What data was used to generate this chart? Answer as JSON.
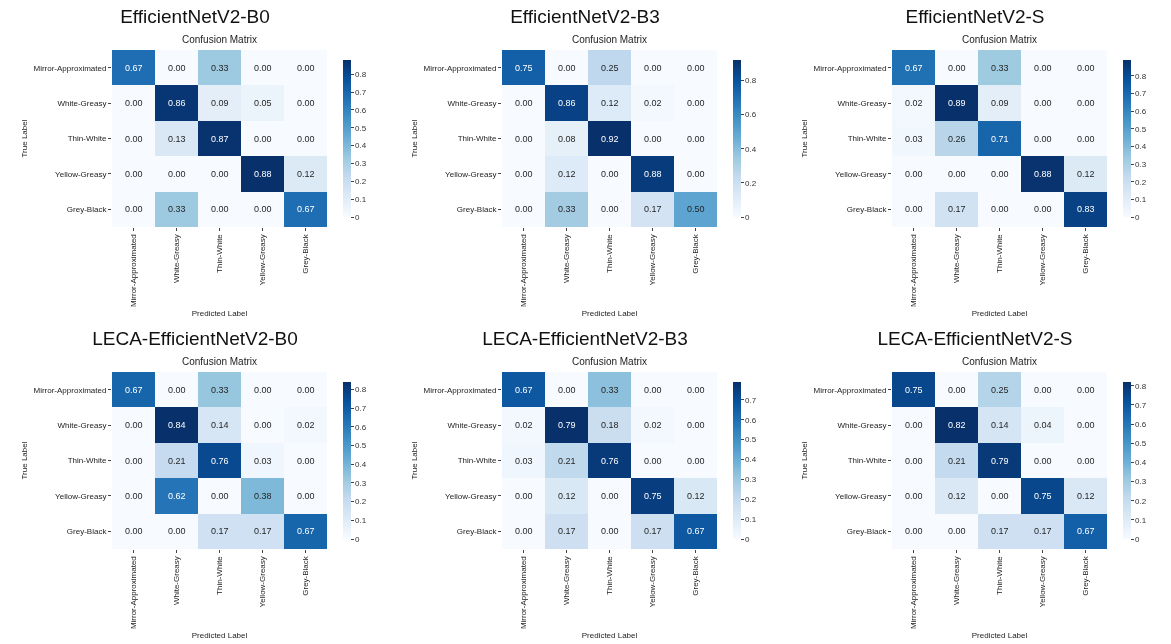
{
  "chart_data": [
    {
      "type": "heatmap",
      "title": "EfficientNetV2-B0",
      "subtitle": "Confusion Matrix",
      "xlabel": "Predicted Label",
      "ylabel": "True Label",
      "categories": [
        "Mirror-Approximated",
        "White-Greasy",
        "Thin-White",
        "Yellow-Greasy",
        "Grey-Black"
      ],
      "y_categories": [
        "Mirror-Approximated",
        "White-Greasy",
        "Thin-White",
        "Yellow-Greasy",
        "Grey-Black"
      ],
      "cells": [
        [
          0.67,
          0,
          0.33,
          0,
          0
        ],
        [
          0,
          0.86,
          0.09,
          0.05,
          0
        ],
        [
          0,
          0.13,
          0.87,
          0,
          0
        ],
        [
          0,
          0,
          0,
          0.88,
          0.12
        ],
        [
          0,
          0.33,
          0,
          0,
          0.67
        ]
      ],
      "cell_labels": [
        [
          "0.67",
          "0.00",
          "0.33",
          "0.00",
          "0.00"
        ],
        [
          "0.00",
          "0.86",
          "0.09",
          "0.05",
          "0.00"
        ],
        [
          "0.00",
          "0.13",
          "0.87",
          "0.00",
          "0.00"
        ],
        [
          "0.00",
          "0.00",
          "0.00",
          "0.88",
          "0.12"
        ],
        [
          "0.00",
          "0.33",
          "0.00",
          "0.00",
          "0.67"
        ]
      ],
      "clim": [
        0,
        0.88
      ],
      "cticks": [
        0,
        0.1,
        0.2,
        0.3,
        0.4,
        0.5,
        0.6,
        0.7,
        0.8
      ]
    },
    {
      "type": "heatmap",
      "title": "EfficientNetV2-B3",
      "subtitle": "Confusion Matrix",
      "xlabel": "Predicted Label",
      "ylabel": "True Label",
      "categories": [
        "Mirror-Approximated",
        "White-Greasy",
        "Thin-White",
        "Yellow-Greasy",
        "Grey-Black"
      ],
      "y_categories": [
        "Mirror-Approximated",
        "White-Greasy",
        "Thin-White",
        "Yellow-Greasy",
        "Grey-Black"
      ],
      "cells": [
        [
          0.75,
          0,
          0.25,
          0,
          0
        ],
        [
          0,
          0.86,
          0.12,
          0.02,
          0
        ],
        [
          0,
          0.08,
          0.92,
          0,
          0
        ],
        [
          0,
          0.12,
          0,
          0.88,
          0
        ],
        [
          0,
          0.33,
          0,
          0.17,
          0.5
        ]
      ],
      "cell_labels": [
        [
          "0.75",
          "0.00",
          "0.25",
          "0.00",
          "0.00"
        ],
        [
          "0.00",
          "0.86",
          "0.12",
          "0.02",
          "0.00"
        ],
        [
          "0.00",
          "0.08",
          "0.92",
          "0.00",
          "0.00"
        ],
        [
          "0.00",
          "0.12",
          "0.00",
          "0.88",
          "0.00"
        ],
        [
          "0.00",
          "0.33",
          "0.00",
          "0.17",
          "0.50"
        ]
      ],
      "clim": [
        0,
        0.92
      ],
      "cticks": [
        0,
        0.2,
        0.4,
        0.6,
        0.8
      ]
    },
    {
      "type": "heatmap",
      "title": "EfficientNetV2-S",
      "subtitle": "Confusion Matrix",
      "xlabel": "Predicted Label",
      "ylabel": "True Label",
      "categories": [
        "Mirror-Approximated",
        "White-Greasy",
        "Thin-White",
        "Yellow-Greasy",
        "Grey-Black"
      ],
      "y_categories": [
        "Mirror-Approximated",
        "White-Greasy",
        "Thin-White",
        "Yellow-Greasy",
        "Grey-Black"
      ],
      "cells": [
        [
          0.67,
          0,
          0.33,
          0,
          0
        ],
        [
          0.02,
          0.89,
          0.09,
          0,
          0
        ],
        [
          0.03,
          0.26,
          0.71,
          0,
          0
        ],
        [
          0,
          0,
          0,
          0.88,
          0.12
        ],
        [
          0,
          0.17,
          0,
          0,
          0.83
        ]
      ],
      "cell_labels": [
        [
          "0.67",
          "0.00",
          "0.33",
          "0.00",
          "0.00"
        ],
        [
          "0.02",
          "0.89",
          "0.09",
          "0.00",
          "0.00"
        ],
        [
          "0.03",
          "0.26",
          "0.71",
          "0.00",
          "0.00"
        ],
        [
          "0.00",
          "0.00",
          "0.00",
          "0.88",
          "0.12"
        ],
        [
          "0.00",
          "0.17",
          "0.00",
          "0.00",
          "0.83"
        ]
      ],
      "clim": [
        0,
        0.89
      ],
      "cticks": [
        0,
        0.1,
        0.2,
        0.3,
        0.4,
        0.5,
        0.6,
        0.7,
        0.8
      ]
    },
    {
      "type": "heatmap",
      "title": "LECA-EfficientNetV2-B0",
      "subtitle": "Confusion Matrix",
      "xlabel": "Predicted Label",
      "ylabel": "True Label",
      "categories": [
        "Mirror-Approximated",
        "White-Greasy",
        "Thin-White",
        "Yellow-Greasy",
        "Grey-Black"
      ],
      "y_categories": [
        "Mirror-Approximated",
        "White-Greasy",
        "Thin-White",
        "Yellow-Greasy",
        "Grey-Black"
      ],
      "cells": [
        [
          0.67,
          0,
          0.33,
          0,
          0
        ],
        [
          0,
          0.84,
          0.14,
          0,
          0.02
        ],
        [
          0,
          0.21,
          0.76,
          0.03,
          0
        ],
        [
          0,
          0.62,
          0,
          0.38,
          0
        ],
        [
          0,
          0,
          0.17,
          0.17,
          0.67
        ]
      ],
      "cell_labels": [
        [
          "0.67",
          "0.00",
          "0.33",
          "0.00",
          "0.00"
        ],
        [
          "0.00",
          "0.84",
          "0.14",
          "0.00",
          "0.02"
        ],
        [
          "0.00",
          "0.21",
          "0.76",
          "0.03",
          "0.00"
        ],
        [
          "0.00",
          "0.62",
          "0.00",
          "0.38",
          "0.00"
        ],
        [
          "0.00",
          "0.00",
          "0.17",
          "0.17",
          "0.67"
        ]
      ],
      "clim": [
        0,
        0.84
      ],
      "cticks": [
        0,
        0.1,
        0.2,
        0.3,
        0.4,
        0.5,
        0.6,
        0.7,
        0.8
      ]
    },
    {
      "type": "heatmap",
      "title": "LECA-EfficientNetV2-B3",
      "subtitle": "Confusion Matrix",
      "xlabel": "Predicted Label",
      "ylabel": "True Label",
      "categories": [
        "Mirror-Approximated",
        "White-Greasy",
        "Thin-White",
        "Yellow-Greasy",
        "Grey-Black"
      ],
      "y_categories": [
        "Mirror-Approximated",
        "White-Greasy",
        "Thin-White",
        "Yellow-Greasy",
        "Grey-Black"
      ],
      "cells": [
        [
          0.67,
          0,
          0.33,
          0,
          0
        ],
        [
          0.02,
          0.79,
          0.18,
          0.02,
          0
        ],
        [
          0.03,
          0.21,
          0.76,
          0,
          0
        ],
        [
          0,
          0.12,
          0,
          0.75,
          0.12
        ],
        [
          0,
          0.17,
          0,
          0.17,
          0.67
        ]
      ],
      "cell_labels": [
        [
          "0.67",
          "0.00",
          "0.33",
          "0.00",
          "0.00"
        ],
        [
          "0.02",
          "0.79",
          "0.18",
          "0.02",
          "0.00"
        ],
        [
          "0.03",
          "0.21",
          "0.76",
          "0.00",
          "0.00"
        ],
        [
          "0.00",
          "0.12",
          "0.00",
          "0.75",
          "0.12"
        ],
        [
          "0.00",
          "0.17",
          "0.00",
          "0.17",
          "0.67"
        ]
      ],
      "clim": [
        0,
        0.79
      ],
      "cticks": [
        0,
        0.1,
        0.2,
        0.3,
        0.4,
        0.5,
        0.6,
        0.7
      ]
    },
    {
      "type": "heatmap",
      "title": "LECA-EfficientNetV2-S",
      "subtitle": "Confusion Matrix",
      "xlabel": "Predicted Label",
      "ylabel": "True Label",
      "categories": [
        "Mirror-Approximated",
        "White-Greasy",
        "Thin-White",
        "Yellow-Greasy",
        "Grey-Black"
      ],
      "y_categories": [
        "Mirror-Approximated",
        "White-Greasy",
        "Thin-White",
        "Yellow-Greasy",
        "Grey-Black"
      ],
      "cells": [
        [
          0.75,
          0,
          0.25,
          0,
          0
        ],
        [
          0,
          0.82,
          0.14,
          0.04,
          0
        ],
        [
          0,
          0.21,
          0.79,
          0,
          0
        ],
        [
          0,
          0.12,
          0,
          0.75,
          0.12
        ],
        [
          0,
          0,
          0.17,
          0.17,
          0.67
        ]
      ],
      "cell_labels": [
        [
          "0.75",
          "0.00",
          "0.25",
          "0.00",
          "0.00"
        ],
        [
          "0.00",
          "0.82",
          "0.14",
          "0.04",
          "0.00"
        ],
        [
          "0.00",
          "0.21",
          "0.79",
          "0.00",
          "0.00"
        ],
        [
          "0.00",
          "0.12",
          "0.00",
          "0.75",
          "0.12"
        ],
        [
          "0.00",
          "0.00",
          "0.17",
          "0.17",
          "0.67"
        ]
      ],
      "clim": [
        0,
        0.82
      ],
      "cticks": [
        0,
        0.1,
        0.2,
        0.3,
        0.4,
        0.5,
        0.6,
        0.7,
        0.8
      ]
    }
  ]
}
